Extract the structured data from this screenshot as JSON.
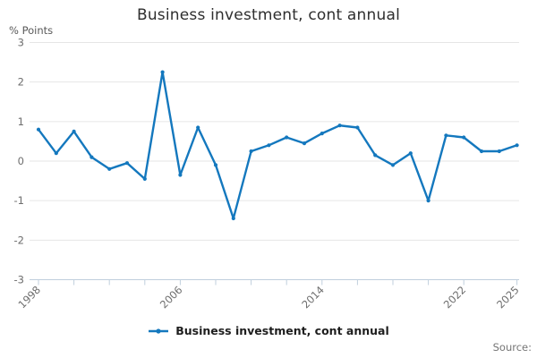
{
  "title": "Business investment, cont annual",
  "y_axis_label": "% Points",
  "source_label": "Source:",
  "legend": {
    "label": "Business investment, cont annual"
  },
  "colors": {
    "line": "#1478be",
    "grid": "#e6e6e6",
    "axis": "#c0cfdd",
    "tick_text": "#6e6e6e",
    "title_text": "#2e2e2e"
  },
  "chart_data": {
    "type": "line",
    "title": "Business investment, cont annual",
    "ylabel": "% Points",
    "xlabel": "",
    "ylim": [
      -3,
      3
    ],
    "yticks": [
      3,
      2,
      1,
      0,
      -1,
      -2,
      -3
    ],
    "grid": true,
    "legend_position": "bottom",
    "x": [
      1998,
      1999,
      2000,
      2001,
      2002,
      2003,
      2004,
      2005,
      2006,
      2007,
      2008,
      2009,
      2010,
      2011,
      2012,
      2013,
      2014,
      2015,
      2016,
      2017,
      2018,
      2019,
      2020,
      2021,
      2022,
      2023,
      2024,
      2025
    ],
    "xticks_minor": [
      1998,
      2000,
      2002,
      2004,
      2006,
      2008,
      2010,
      2012,
      2014,
      2016,
      2018,
      2020,
      2022,
      2025
    ],
    "xticks_labeled": [
      1998,
      2006,
      2014,
      2022,
      2025
    ],
    "series": [
      {
        "name": "Business investment, cont annual",
        "values": [
          0.8,
          0.2,
          0.75,
          0.1,
          -0.2,
          -0.05,
          -0.45,
          2.25,
          -0.35,
          0.85,
          -0.1,
          -1.45,
          0.25,
          0.4,
          0.6,
          0.45,
          0.7,
          0.9,
          0.85,
          0.15,
          -0.1,
          0.2,
          -1.0,
          0.65,
          0.6,
          0.25,
          0.25,
          0.4
        ]
      }
    ]
  }
}
